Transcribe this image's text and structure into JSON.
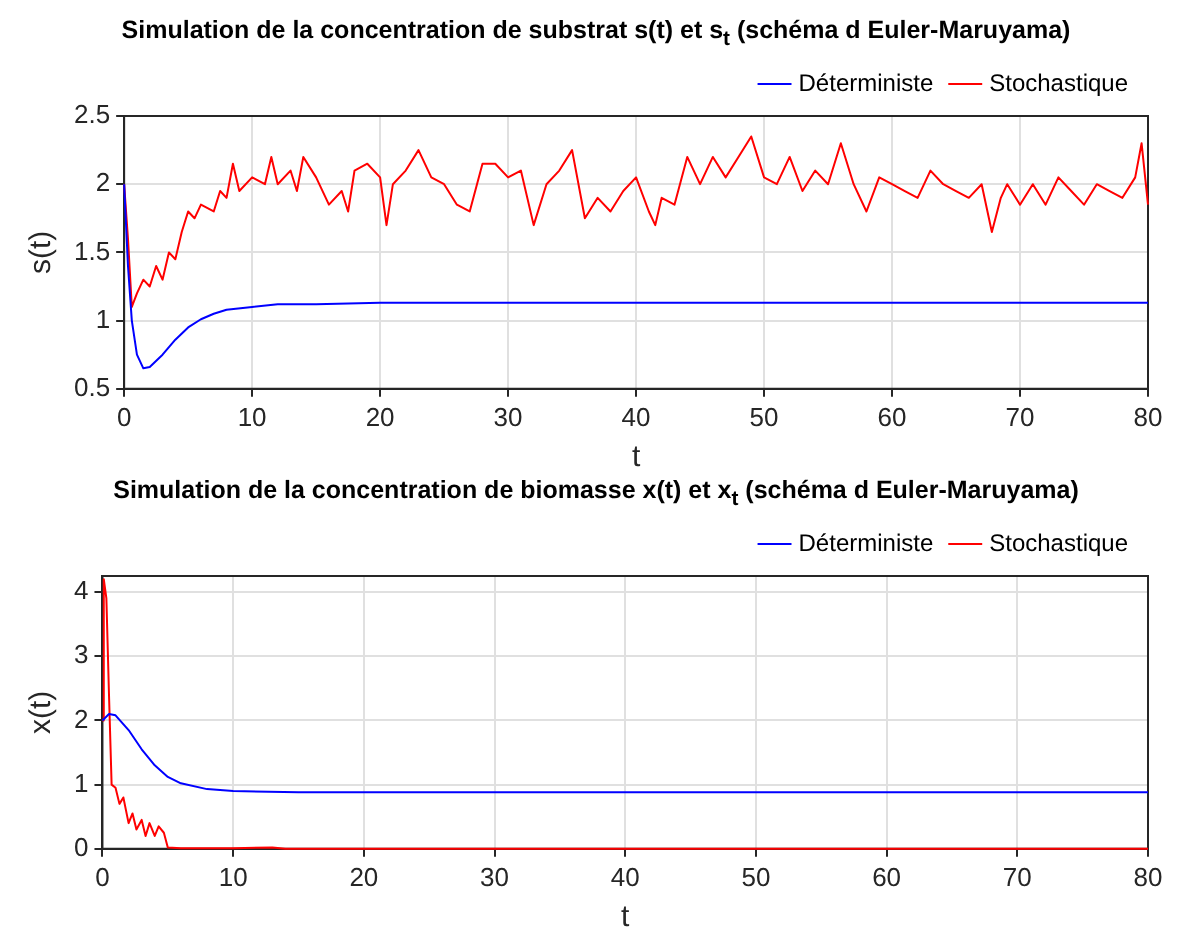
{
  "chart_data": [
    {
      "type": "line",
      "title": "Simulation de la concentration de substrat s(t) et s$_{t}$ (schéma d Euler-Maruyama)",
      "xlabel": "t",
      "ylabel": "s(t)",
      "xlim": [
        0,
        80
      ],
      "xticks": [
        0,
        10,
        20,
        30,
        40,
        50,
        60,
        70,
        80
      ],
      "ylim": [
        0.5,
        2.5
      ],
      "yticks": [
        0.5,
        1,
        1.5,
        2,
        2.5
      ],
      "grid": true,
      "legend": "top right",
      "series": [
        {
          "name": "Déterministe",
          "color": "#0000ff",
          "x": [
            0,
            0.3,
            0.6,
            1,
            1.5,
            2,
            3,
            4,
            5,
            6,
            7,
            8,
            10,
            12,
            15,
            20,
            80
          ],
          "values": [
            2.0,
            1.4,
            1.0,
            0.75,
            0.65,
            0.66,
            0.75,
            0.86,
            0.95,
            1.01,
            1.05,
            1.08,
            1.1,
            1.12,
            1.12,
            1.13,
            1.13
          ]
        },
        {
          "name": "Stochastique",
          "color": "#ff0000",
          "x": [
            0,
            0.3,
            0.6,
            1,
            1.5,
            2,
            2.5,
            3,
            3.5,
            4,
            4.5,
            5,
            5.5,
            6,
            7,
            7.5,
            8,
            8.5,
            9,
            10,
            11,
            11.5,
            12,
            13,
            13.5,
            14,
            15,
            16,
            17,
            17.5,
            18,
            19,
            20,
            20.5,
            21,
            22,
            23,
            24,
            25,
            26,
            27,
            28,
            29,
            30,
            31,
            32,
            33,
            34,
            35,
            36,
            37,
            38,
            39,
            40,
            41,
            41.5,
            42,
            43,
            44,
            45,
            46,
            47,
            48,
            49,
            50,
            51,
            52,
            53,
            54,
            55,
            56,
            57,
            58,
            59,
            60,
            61,
            62,
            63,
            64,
            65,
            66,
            67,
            67.8,
            68.5,
            69,
            70,
            71,
            72,
            73,
            74,
            75,
            76,
            77,
            78,
            79,
            79.5,
            80
          ],
          "values": [
            2.0,
            1.6,
            1.1,
            1.2,
            1.3,
            1.25,
            1.4,
            1.3,
            1.5,
            1.45,
            1.65,
            1.8,
            1.75,
            1.85,
            1.8,
            1.95,
            1.9,
            2.15,
            1.95,
            2.05,
            2.0,
            2.2,
            2.0,
            2.1,
            1.95,
            2.2,
            2.05,
            1.85,
            1.95,
            1.8,
            2.1,
            2.15,
            2.05,
            1.7,
            2.0,
            2.1,
            2.25,
            2.05,
            2.0,
            1.85,
            1.8,
            2.15,
            2.15,
            2.05,
            2.1,
            1.7,
            2.0,
            2.1,
            2.25,
            1.75,
            1.9,
            1.8,
            1.95,
            2.05,
            1.8,
            1.7,
            1.9,
            1.85,
            2.2,
            2.0,
            2.2,
            2.05,
            2.2,
            2.35,
            2.05,
            2.0,
            2.2,
            1.95,
            2.1,
            2.0,
            2.3,
            2.0,
            1.8,
            2.05,
            2.0,
            1.95,
            1.9,
            2.1,
            2.0,
            1.95,
            1.9,
            2.0,
            1.65,
            1.9,
            2.0,
            1.85,
            2.0,
            1.85,
            2.05,
            1.95,
            1.85,
            2.0,
            1.95,
            1.9,
            2.05,
            2.3,
            1.85
          ]
        }
      ]
    },
    {
      "type": "line",
      "title": "Simulation de la concentration de biomasse x(t) et x$_{t}$ (schéma d Euler-Maruyama)",
      "xlabel": "t",
      "ylabel": "x(t)",
      "xlim": [
        0,
        80
      ],
      "xticks": [
        0,
        10,
        20,
        30,
        40,
        50,
        60,
        70,
        80
      ],
      "ylim": [
        0,
        4.25
      ],
      "yticks": [
        0,
        1,
        2,
        3,
        4
      ],
      "grid": true,
      "legend": "top right",
      "series": [
        {
          "name": "Déterministe",
          "color": "#0000ff",
          "x": [
            0,
            0.5,
            1,
            2,
            3,
            4,
            5,
            6,
            8,
            10,
            15,
            80
          ],
          "values": [
            2.0,
            2.1,
            2.08,
            1.85,
            1.55,
            1.3,
            1.12,
            1.02,
            0.93,
            0.9,
            0.88,
            0.88
          ]
        },
        {
          "name": "Stochastique",
          "color": "#ff0000",
          "x": [
            0,
            0.1,
            0.3,
            0.5,
            0.7,
            1,
            1.3,
            1.6,
            2,
            2.3,
            2.6,
            3,
            3.3,
            3.6,
            4,
            4.3,
            4.7,
            5,
            6,
            10,
            13,
            14,
            80
          ],
          "values": [
            2.0,
            4.2,
            3.9,
            2.4,
            1.0,
            0.95,
            0.7,
            0.8,
            0.4,
            0.55,
            0.3,
            0.45,
            0.2,
            0.4,
            0.2,
            0.35,
            0.25,
            0.02,
            0.01,
            0.01,
            0.02,
            0.0,
            0.0
          ]
        }
      ]
    }
  ]
}
